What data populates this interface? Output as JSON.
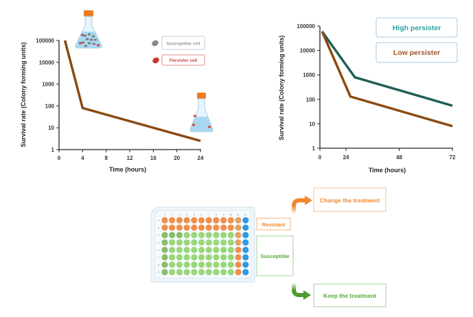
{
  "chart_data": [
    {
      "type": "line",
      "xlabel": "Time (hours)",
      "ylabel": "Survival rate (Colony forming units)",
      "yscale": "log",
      "ylim": [
        1,
        100000
      ],
      "xlim": [
        0,
        24
      ],
      "xticks": [
        "0",
        "4",
        "8",
        "12",
        "16",
        "20",
        "24"
      ],
      "yticks": [
        "1",
        "10",
        "100",
        "1000",
        "10000",
        "100000"
      ],
      "series": [
        {
          "x": [
            1,
            4,
            24
          ],
          "y": [
            100000,
            80,
            2.5
          ],
          "color": "#8a4a12"
        }
      ],
      "legend": [
        {
          "label": "Susceptible cell",
          "color": "#9a9a9a",
          "icon": "grey-cell-icon"
        },
        {
          "label": "Persister cell",
          "color": "#d0453c",
          "icon": "red-cell-icon"
        }
      ]
    },
    {
      "type": "line",
      "xlabel": "Time (hours)",
      "ylabel": "Survival rate (Colony forming units)",
      "yscale": "log",
      "ylim": [
        1,
        100000
      ],
      "xlim": [
        0,
        72
      ],
      "xticks": [
        "0",
        "24",
        "48",
        "72"
      ],
      "yticks": [
        "1",
        "10",
        "100",
        "1000",
        "10000",
        "100000"
      ],
      "series": [
        {
          "name": "High persister",
          "x": [
            2,
            28,
            72
          ],
          "y": [
            60000,
            800,
            55
          ],
          "color": "#1e5f57"
        },
        {
          "name": "Low persister",
          "x": [
            2,
            26,
            72
          ],
          "y": [
            60000,
            130,
            8
          ],
          "color": "#8a4a12"
        }
      ]
    }
  ],
  "legend2": {
    "high": "High persister",
    "low": "Low persister",
    "high_color": "#2aa3a0",
    "low_color": "#a0562a"
  },
  "plate": {
    "col_labels": [
      "1",
      "2",
      "3",
      "4",
      "5",
      "6",
      "7",
      "8",
      "9",
      "10",
      "11",
      "12"
    ],
    "row_labels": [
      "A",
      "B",
      "C",
      "D",
      "E",
      "F",
      "G",
      "H"
    ]
  },
  "flow": {
    "resistant": "Resistant",
    "susceptible": "Susceptible",
    "change": "Change the treatment",
    "keep": "Keep the treatment",
    "orange": "#f0882c",
    "green": "#5aa83a"
  }
}
